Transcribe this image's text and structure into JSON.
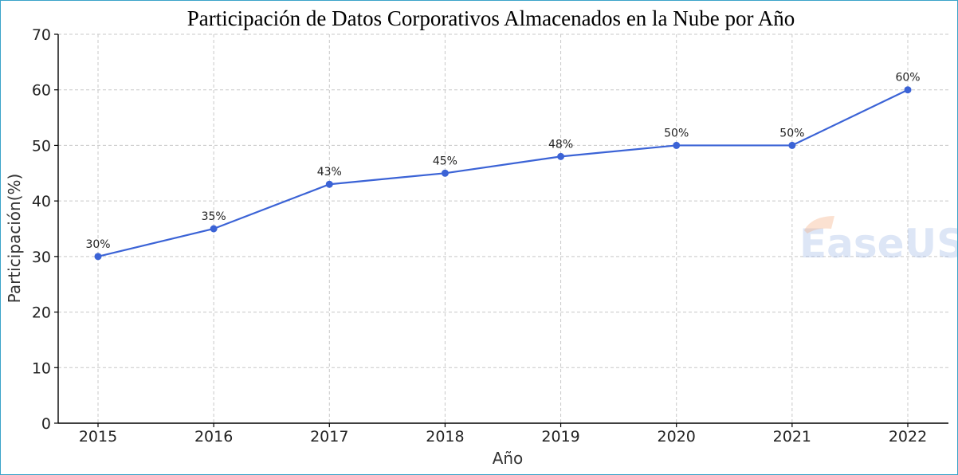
{
  "chart_data": {
    "type": "line",
    "title": "Participación de Datos Corporativos Almacenados en la Nube por Año",
    "xlabel": "Año",
    "ylabel": "Participación(%)",
    "categories": [
      "2015",
      "2016",
      "2017",
      "2018",
      "2019",
      "2020",
      "2021",
      "2022"
    ],
    "values": [
      30,
      35,
      43,
      45,
      48,
      50,
      50,
      60
    ],
    "data_labels": [
      "30%",
      "35%",
      "43%",
      "45%",
      "48%",
      "50%",
      "50%",
      "60%"
    ],
    "ylim": [
      0,
      70
    ],
    "yticks": [
      0,
      10,
      20,
      30,
      40,
      50,
      60,
      70
    ],
    "grid": true,
    "line_color": "#3b63d6",
    "watermark": "EaseUS"
  }
}
